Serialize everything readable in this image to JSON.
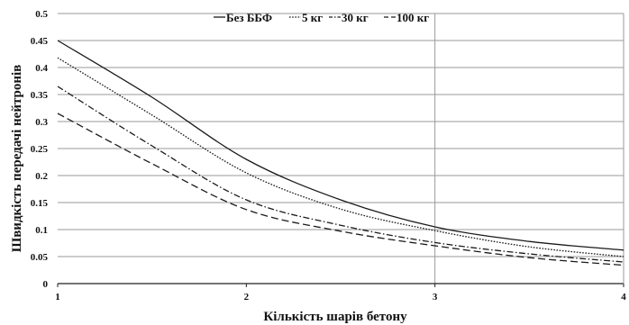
{
  "chart_data": {
    "type": "line",
    "xlabel": "Кількість шарів бетону",
    "ylabel": "Швидкість передачі нейтронів",
    "xlim": [
      1,
      4
    ],
    "ylim": [
      0,
      0.5
    ],
    "x_ticks": [
      "1",
      "2",
      "3",
      "4"
    ],
    "y_ticks": [
      "0",
      "0.05",
      "0.1",
      "0.15",
      "0.2",
      "0.25",
      "0.3",
      "0.35",
      "0.4",
      "0.45",
      "0.5"
    ],
    "grid": {
      "horizontal_values": [
        0.05,
        0.1,
        0.15,
        0.2,
        0.25,
        0.3,
        0.35,
        0.4,
        0.45,
        0.5
      ],
      "vertical_values": [
        3
      ]
    },
    "legend_position": "top",
    "x": [
      1,
      1.5,
      2,
      2.5,
      3,
      3.5,
      4
    ],
    "series": [
      {
        "name": "Без ББФ",
        "dash": "solid",
        "values": [
          0.45,
          0.345,
          0.23,
          0.155,
          0.105,
          0.078,
          0.062
        ]
      },
      {
        "name": "5 кг",
        "dash": "dotted",
        "values": [
          0.418,
          0.312,
          0.205,
          0.138,
          0.098,
          0.068,
          0.05
        ]
      },
      {
        "name": "30 кг",
        "dash": "dashdot",
        "values": [
          0.365,
          0.255,
          0.155,
          0.108,
          0.076,
          0.055,
          0.04
        ]
      },
      {
        "name": "100 кг",
        "dash": "dashed",
        "values": [
          0.315,
          0.222,
          0.137,
          0.097,
          0.07,
          0.048,
          0.034
        ]
      }
    ]
  }
}
